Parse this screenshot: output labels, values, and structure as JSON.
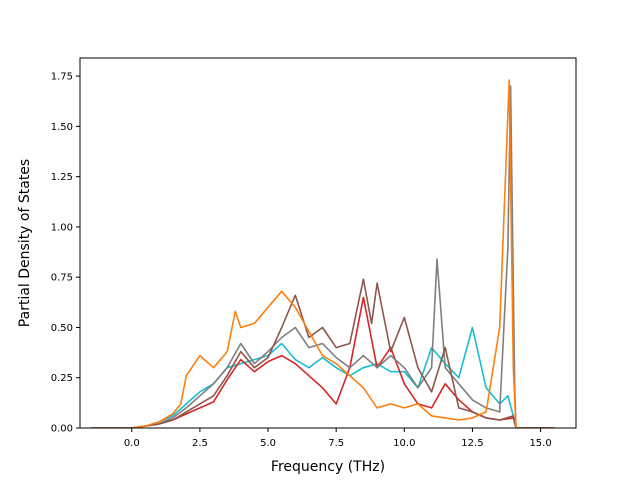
{
  "chart_data": {
    "type": "line",
    "title": "",
    "xlabel": "Frequency (THz)",
    "ylabel": "Partial Density of States",
    "xlim": [
      -1.9,
      16.3
    ],
    "ylim": [
      0,
      1.84
    ],
    "xticks": [
      0.0,
      2.5,
      5.0,
      7.5,
      10.0,
      12.5,
      15.0
    ],
    "xtick_labels": [
      "0.0",
      "2.5",
      "5.0",
      "7.5",
      "10.0",
      "12.5",
      "15.0"
    ],
    "yticks": [
      0.0,
      0.25,
      0.5,
      0.75,
      1.0,
      1.25,
      1.5,
      1.75
    ],
    "ytick_labels": [
      "0.00",
      "0.25",
      "0.50",
      "0.75",
      "1.00",
      "1.25",
      "1.50",
      "1.75"
    ],
    "grid": false,
    "legend": "none",
    "series": [
      {
        "color": "#17becf",
        "points": [
          [
            -1.5,
            0
          ],
          [
            0,
            0
          ],
          [
            0.5,
            0.01
          ],
          [
            1.0,
            0.03
          ],
          [
            1.5,
            0.06
          ],
          [
            2.0,
            0.12
          ],
          [
            2.5,
            0.18
          ],
          [
            3.0,
            0.22
          ],
          [
            3.5,
            0.3
          ],
          [
            4.0,
            0.32
          ],
          [
            4.5,
            0.34
          ],
          [
            5.0,
            0.36
          ],
          [
            5.5,
            0.42
          ],
          [
            6.0,
            0.34
          ],
          [
            6.5,
            0.3
          ],
          [
            7.0,
            0.35
          ],
          [
            7.5,
            0.3
          ],
          [
            8.0,
            0.26
          ],
          [
            8.5,
            0.3
          ],
          [
            9.0,
            0.32
          ],
          [
            9.5,
            0.28
          ],
          [
            10.0,
            0.28
          ],
          [
            10.5,
            0.2
          ],
          [
            11.0,
            0.4
          ],
          [
            11.5,
            0.32
          ],
          [
            12.0,
            0.25
          ],
          [
            12.5,
            0.5
          ],
          [
            13.0,
            0.2
          ],
          [
            13.5,
            0.12
          ],
          [
            13.8,
            0.16
          ],
          [
            14.0,
            0.06
          ],
          [
            14.1,
            0
          ],
          [
            15.5,
            0
          ]
        ]
      },
      {
        "color": "#d62728",
        "points": [
          [
            -1.5,
            0
          ],
          [
            0,
            0
          ],
          [
            0.5,
            0.01
          ],
          [
            1.0,
            0.02
          ],
          [
            1.5,
            0.04
          ],
          [
            2.0,
            0.07
          ],
          [
            2.5,
            0.1
          ],
          [
            3.0,
            0.13
          ],
          [
            3.5,
            0.24
          ],
          [
            4.0,
            0.34
          ],
          [
            4.5,
            0.28
          ],
          [
            5.0,
            0.33
          ],
          [
            5.5,
            0.36
          ],
          [
            6.0,
            0.32
          ],
          [
            6.5,
            0.26
          ],
          [
            7.0,
            0.2
          ],
          [
            7.5,
            0.12
          ],
          [
            8.0,
            0.3
          ],
          [
            8.5,
            0.65
          ],
          [
            9.0,
            0.3
          ],
          [
            9.5,
            0.4
          ],
          [
            10.0,
            0.22
          ],
          [
            10.5,
            0.12
          ],
          [
            11.0,
            0.1
          ],
          [
            11.5,
            0.22
          ],
          [
            12.0,
            0.14
          ],
          [
            12.5,
            0.08
          ],
          [
            13.0,
            0.05
          ],
          [
            13.5,
            0.04
          ],
          [
            14.0,
            0.05
          ],
          [
            14.1,
            0
          ],
          [
            15.5,
            0
          ]
        ]
      },
      {
        "color": "#7f7f7f",
        "points": [
          [
            -1.5,
            0
          ],
          [
            0,
            0
          ],
          [
            0.5,
            0.01
          ],
          [
            1.0,
            0.02
          ],
          [
            1.5,
            0.05
          ],
          [
            2.0,
            0.1
          ],
          [
            2.5,
            0.16
          ],
          [
            3.0,
            0.22
          ],
          [
            3.5,
            0.3
          ],
          [
            4.0,
            0.42
          ],
          [
            4.5,
            0.32
          ],
          [
            5.0,
            0.38
          ],
          [
            5.5,
            0.45
          ],
          [
            6.0,
            0.5
          ],
          [
            6.5,
            0.4
          ],
          [
            7.0,
            0.42
          ],
          [
            7.5,
            0.35
          ],
          [
            8.0,
            0.3
          ],
          [
            8.5,
            0.36
          ],
          [
            9.0,
            0.3
          ],
          [
            9.5,
            0.36
          ],
          [
            10.0,
            0.3
          ],
          [
            10.5,
            0.2
          ],
          [
            11.0,
            0.3
          ],
          [
            11.2,
            0.84
          ],
          [
            11.5,
            0.3
          ],
          [
            12.0,
            0.22
          ],
          [
            12.5,
            0.14
          ],
          [
            13.0,
            0.1
          ],
          [
            13.5,
            0.08
          ],
          [
            13.8,
            0.9
          ],
          [
            13.9,
            1.7
          ],
          [
            14.05,
            0.2
          ],
          [
            14.1,
            0
          ],
          [
            15.5,
            0
          ]
        ]
      },
      {
        "color": "#8c564b",
        "points": [
          [
            -1.5,
            0
          ],
          [
            0,
            0
          ],
          [
            0.5,
            0.01
          ],
          [
            1.0,
            0.02
          ],
          [
            1.5,
            0.04
          ],
          [
            2.0,
            0.08
          ],
          [
            2.5,
            0.12
          ],
          [
            3.0,
            0.16
          ],
          [
            3.5,
            0.26
          ],
          [
            4.0,
            0.38
          ],
          [
            4.5,
            0.3
          ],
          [
            5.0,
            0.35
          ],
          [
            5.5,
            0.5
          ],
          [
            6.0,
            0.66
          ],
          [
            6.5,
            0.45
          ],
          [
            7.0,
            0.5
          ],
          [
            7.5,
            0.4
          ],
          [
            8.0,
            0.42
          ],
          [
            8.5,
            0.74
          ],
          [
            8.8,
            0.52
          ],
          [
            9.0,
            0.72
          ],
          [
            9.5,
            0.38
          ],
          [
            10.0,
            0.55
          ],
          [
            10.5,
            0.3
          ],
          [
            11.0,
            0.18
          ],
          [
            11.5,
            0.4
          ],
          [
            12.0,
            0.1
          ],
          [
            12.5,
            0.08
          ],
          [
            13.0,
            0.05
          ],
          [
            13.5,
            0.04
          ],
          [
            14.0,
            0.06
          ],
          [
            14.1,
            0
          ],
          [
            15.5,
            0
          ]
        ]
      },
      {
        "color": "#ff7f0e",
        "points": [
          [
            -1.5,
            0
          ],
          [
            0,
            0
          ],
          [
            0.5,
            0.01
          ],
          [
            1.0,
            0.03
          ],
          [
            1.5,
            0.07
          ],
          [
            1.8,
            0.12
          ],
          [
            2.0,
            0.26
          ],
          [
            2.5,
            0.36
          ],
          [
            3.0,
            0.3
          ],
          [
            3.5,
            0.38
          ],
          [
            3.8,
            0.58
          ],
          [
            4.0,
            0.5
          ],
          [
            4.5,
            0.52
          ],
          [
            5.0,
            0.6
          ],
          [
            5.5,
            0.68
          ],
          [
            6.0,
            0.6
          ],
          [
            6.5,
            0.48
          ],
          [
            7.0,
            0.36
          ],
          [
            7.5,
            0.32
          ],
          [
            8.0,
            0.26
          ],
          [
            8.5,
            0.2
          ],
          [
            9.0,
            0.1
          ],
          [
            9.5,
            0.12
          ],
          [
            10.0,
            0.1
          ],
          [
            10.5,
            0.12
          ],
          [
            11.0,
            0.06
          ],
          [
            11.5,
            0.05
          ],
          [
            12.0,
            0.04
          ],
          [
            12.5,
            0.05
          ],
          [
            13.0,
            0.08
          ],
          [
            13.5,
            0.5
          ],
          [
            13.85,
            1.73
          ],
          [
            14.0,
            0.3
          ],
          [
            14.1,
            0
          ],
          [
            15.5,
            0
          ]
        ]
      }
    ]
  }
}
